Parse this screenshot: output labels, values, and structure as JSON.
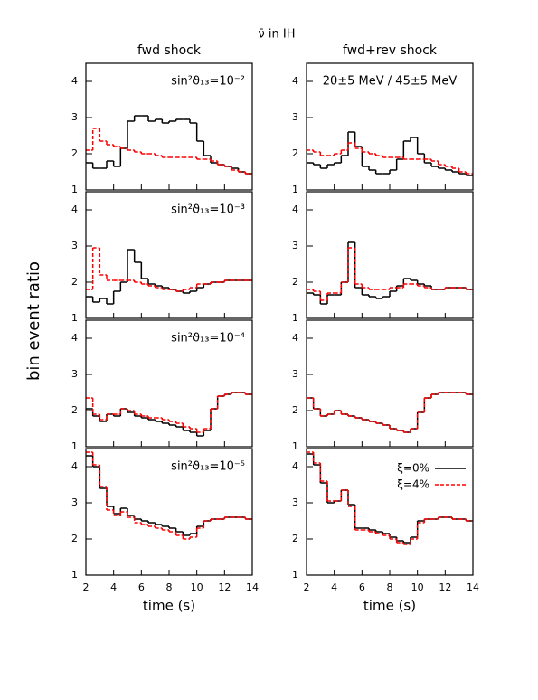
{
  "figure": {
    "title": "ν̄ in IH",
    "columns": [
      "fwd shock",
      "fwd+rev shock"
    ],
    "ylabel": "bin event ratio"
  },
  "chart_data": [
    {
      "type": "histogram",
      "annotation": "sin²ϑ₁₃=10⁻²",
      "bins": [
        2,
        2.5,
        3,
        3.5,
        4,
        4.5,
        5,
        5.5,
        6,
        6.5,
        7,
        7.5,
        8,
        8.5,
        9,
        9.5,
        10,
        10.5,
        11,
        11.5,
        12,
        12.5,
        13,
        13.5,
        14
      ],
      "xlim": [
        2,
        14
      ],
      "xticks": [
        2,
        4,
        6,
        8,
        10,
        12,
        14
      ],
      "ylim": [
        1,
        4.5
      ],
      "yticks": [
        1,
        2,
        3,
        4
      ],
      "series": [
        {
          "color": "#000000",
          "dash": false,
          "values": [
            1.75,
            1.6,
            1.6,
            1.8,
            1.65,
            2.15,
            2.9,
            3.05,
            3.05,
            2.9,
            2.95,
            2.85,
            2.9,
            2.95,
            2.95,
            2.85,
            2.35,
            1.95,
            1.75,
            1.7,
            1.65,
            1.6,
            1.5,
            1.45
          ]
        },
        {
          "color": "#ff0000",
          "dash": true,
          "values": [
            2.1,
            2.7,
            2.35,
            2.25,
            2.2,
            2.15,
            2.1,
            2.05,
            2.0,
            2.0,
            1.95,
            1.9,
            1.9,
            1.9,
            1.9,
            1.9,
            1.85,
            1.85,
            1.8,
            1.7,
            1.65,
            1.55,
            1.5,
            1.45
          ]
        }
      ]
    },
    {
      "type": "histogram",
      "annotation": "20±5 MeV / 45±5 MeV",
      "bins": [
        2,
        2.5,
        3,
        3.5,
        4,
        4.5,
        5,
        5.5,
        6,
        6.5,
        7,
        7.5,
        8,
        8.5,
        9,
        9.5,
        10,
        10.5,
        11,
        11.5,
        12,
        12.5,
        13,
        13.5,
        14
      ],
      "xlim": [
        2,
        14
      ],
      "xticks": [
        2,
        4,
        6,
        8,
        10,
        12,
        14
      ],
      "ylim": [
        1,
        4.5
      ],
      "yticks": [
        1,
        2,
        3,
        4
      ],
      "series": [
        {
          "color": "#000000",
          "dash": false,
          "values": [
            1.75,
            1.7,
            1.6,
            1.7,
            1.75,
            1.95,
            2.6,
            2.2,
            1.65,
            1.55,
            1.45,
            1.45,
            1.55,
            1.85,
            2.35,
            2.45,
            2.0,
            1.75,
            1.65,
            1.6,
            1.55,
            1.5,
            1.45,
            1.4
          ]
        },
        {
          "color": "#ff0000",
          "dash": true,
          "values": [
            2.1,
            2.05,
            1.95,
            1.95,
            2.0,
            2.1,
            2.3,
            2.15,
            2.05,
            2.0,
            1.95,
            1.9,
            1.9,
            1.9,
            1.85,
            1.85,
            1.85,
            1.85,
            1.8,
            1.7,
            1.65,
            1.6,
            1.5,
            1.45
          ]
        }
      ]
    },
    {
      "type": "histogram",
      "annotation": "sin²ϑ₁₃=10⁻³",
      "bins": [
        2,
        2.5,
        3,
        3.5,
        4,
        4.5,
        5,
        5.5,
        6,
        6.5,
        7,
        7.5,
        8,
        8.5,
        9,
        9.5,
        10,
        10.5,
        11,
        11.5,
        12,
        12.5,
        13,
        13.5,
        14
      ],
      "xlim": [
        2,
        14
      ],
      "xticks": [
        2,
        4,
        6,
        8,
        10,
        12,
        14
      ],
      "ylim": [
        1,
        4.5
      ],
      "yticks": [
        1,
        2,
        3,
        4
      ],
      "series": [
        {
          "color": "#000000",
          "dash": false,
          "values": [
            1.6,
            1.45,
            1.55,
            1.4,
            1.75,
            2.0,
            2.9,
            2.55,
            2.1,
            1.95,
            1.9,
            1.85,
            1.8,
            1.75,
            1.7,
            1.75,
            1.85,
            1.95,
            2.0,
            2.0,
            2.05,
            2.05,
            2.05,
            2.05
          ]
        },
        {
          "color": "#ff0000",
          "dash": true,
          "values": [
            1.8,
            2.95,
            2.2,
            2.05,
            2.05,
            2.05,
            2.05,
            2.0,
            1.95,
            1.9,
            1.85,
            1.8,
            1.8,
            1.75,
            1.8,
            1.85,
            1.95,
            1.95,
            2.0,
            2.0,
            2.05,
            2.05,
            2.05,
            2.05
          ]
        }
      ]
    },
    {
      "type": "histogram",
      "bins": [
        2,
        2.5,
        3,
        3.5,
        4,
        4.5,
        5,
        5.5,
        6,
        6.5,
        7,
        7.5,
        8,
        8.5,
        9,
        9.5,
        10,
        10.5,
        11,
        11.5,
        12,
        12.5,
        13,
        13.5,
        14
      ],
      "xlim": [
        2,
        14
      ],
      "xticks": [
        2,
        4,
        6,
        8,
        10,
        12,
        14
      ],
      "ylim": [
        1,
        4.5
      ],
      "yticks": [
        1,
        2,
        3,
        4
      ],
      "series": [
        {
          "color": "#000000",
          "dash": false,
          "values": [
            1.7,
            1.65,
            1.4,
            1.65,
            1.65,
            2.0,
            3.1,
            1.85,
            1.65,
            1.6,
            1.55,
            1.6,
            1.75,
            1.9,
            2.1,
            2.05,
            1.95,
            1.9,
            1.8,
            1.8,
            1.85,
            1.85,
            1.85,
            1.8
          ]
        },
        {
          "color": "#ff0000",
          "dash": true,
          "values": [
            1.8,
            1.75,
            1.5,
            1.7,
            1.7,
            2.0,
            2.95,
            1.95,
            1.85,
            1.8,
            1.8,
            1.8,
            1.85,
            1.85,
            1.95,
            1.95,
            1.9,
            1.85,
            1.8,
            1.8,
            1.85,
            1.85,
            1.85,
            1.8
          ]
        }
      ]
    },
    {
      "type": "histogram",
      "annotation": "sin²ϑ₁₃=10⁻⁴",
      "bins": [
        2,
        2.5,
        3,
        3.5,
        4,
        4.5,
        5,
        5.5,
        6,
        6.5,
        7,
        7.5,
        8,
        8.5,
        9,
        9.5,
        10,
        10.5,
        11,
        11.5,
        12,
        12.5,
        13,
        13.5,
        14
      ],
      "xlim": [
        2,
        14
      ],
      "xticks": [
        2,
        4,
        6,
        8,
        10,
        12,
        14
      ],
      "ylim": [
        1,
        4.5
      ],
      "yticks": [
        1,
        2,
        3,
        4
      ],
      "series": [
        {
          "color": "#000000",
          "dash": false,
          "values": [
            2.05,
            1.85,
            1.7,
            1.9,
            1.85,
            2.05,
            1.95,
            1.85,
            1.8,
            1.75,
            1.7,
            1.65,
            1.6,
            1.55,
            1.45,
            1.4,
            1.3,
            1.45,
            2.05,
            2.4,
            2.45,
            2.5,
            2.5,
            2.45
          ]
        },
        {
          "color": "#ff0000",
          "dash": true,
          "values": [
            2.35,
            1.9,
            1.75,
            1.9,
            1.9,
            2.05,
            2.0,
            1.9,
            1.85,
            1.8,
            1.8,
            1.75,
            1.7,
            1.65,
            1.55,
            1.5,
            1.4,
            1.5,
            2.05,
            2.4,
            2.45,
            2.5,
            2.5,
            2.45
          ]
        }
      ]
    },
    {
      "type": "histogram",
      "bins": [
        2,
        2.5,
        3,
        3.5,
        4,
        4.5,
        5,
        5.5,
        6,
        6.5,
        7,
        7.5,
        8,
        8.5,
        9,
        9.5,
        10,
        10.5,
        11,
        11.5,
        12,
        12.5,
        13,
        13.5,
        14
      ],
      "xlim": [
        2,
        14
      ],
      "xticks": [
        2,
        4,
        6,
        8,
        10,
        12,
        14
      ],
      "ylim": [
        1,
        4.5
      ],
      "yticks": [
        1,
        2,
        3,
        4
      ],
      "series": [
        {
          "color": "#000000",
          "dash": false,
          "values": [
            2.35,
            2.05,
            1.85,
            1.9,
            2.0,
            1.9,
            1.85,
            1.8,
            1.75,
            1.7,
            1.65,
            1.6,
            1.5,
            1.45,
            1.4,
            1.5,
            1.95,
            2.35,
            2.45,
            2.5,
            2.5,
            2.5,
            2.5,
            2.45
          ]
        },
        {
          "color": "#ff0000",
          "dash": true,
          "values": [
            2.35,
            2.05,
            1.85,
            1.9,
            2.0,
            1.9,
            1.85,
            1.8,
            1.75,
            1.7,
            1.65,
            1.6,
            1.5,
            1.45,
            1.4,
            1.5,
            1.95,
            2.35,
            2.45,
            2.5,
            2.5,
            2.5,
            2.5,
            2.45
          ]
        }
      ]
    },
    {
      "type": "histogram",
      "annotation": "sin²ϑ₁₃=10⁻⁵",
      "xlabel": "time (s)",
      "bins": [
        2,
        2.5,
        3,
        3.5,
        4,
        4.5,
        5,
        5.5,
        6,
        6.5,
        7,
        7.5,
        8,
        8.5,
        9,
        9.5,
        10,
        10.5,
        11,
        11.5,
        12,
        12.5,
        13,
        13.5,
        14
      ],
      "xlim": [
        2,
        14
      ],
      "xticks": [
        2,
        4,
        6,
        8,
        10,
        12,
        14
      ],
      "ylim": [
        1,
        4.5
      ],
      "yticks": [
        1,
        2,
        3,
        4
      ],
      "series": [
        {
          "color": "#000000",
          "dash": false,
          "values": [
            4.3,
            4.0,
            3.4,
            2.9,
            2.7,
            2.85,
            2.65,
            2.55,
            2.5,
            2.45,
            2.4,
            2.35,
            2.3,
            2.2,
            2.1,
            2.15,
            2.35,
            2.5,
            2.55,
            2.55,
            2.6,
            2.6,
            2.6,
            2.55
          ]
        },
        {
          "color": "#ff0000",
          "dash": true,
          "values": [
            4.4,
            4.05,
            3.45,
            2.8,
            2.65,
            2.75,
            2.6,
            2.45,
            2.4,
            2.35,
            2.3,
            2.25,
            2.2,
            2.1,
            2.0,
            2.05,
            2.3,
            2.5,
            2.55,
            2.55,
            2.6,
            2.6,
            2.6,
            2.55
          ]
        }
      ]
    },
    {
      "type": "histogram",
      "xlabel": "time (s)",
      "legend": "top-right",
      "bins": [
        2,
        2.5,
        3,
        3.5,
        4,
        4.5,
        5,
        5.5,
        6,
        6.5,
        7,
        7.5,
        8,
        8.5,
        9,
        9.5,
        10,
        10.5,
        11,
        11.5,
        12,
        12.5,
        13,
        13.5,
        14
      ],
      "xlim": [
        2,
        14
      ],
      "xticks": [
        2,
        4,
        6,
        8,
        10,
        12,
        14
      ],
      "ylim": [
        1,
        4.5
      ],
      "yticks": [
        1,
        2,
        3,
        4
      ],
      "series": [
        {
          "name": "ξ=0%",
          "color": "#000000",
          "dash": false,
          "values": [
            4.35,
            4.05,
            3.55,
            3.0,
            3.05,
            3.35,
            2.95,
            2.3,
            2.3,
            2.25,
            2.2,
            2.15,
            2.05,
            1.95,
            1.9,
            2.05,
            2.5,
            2.55,
            2.55,
            2.6,
            2.6,
            2.55,
            2.55,
            2.5
          ]
        },
        {
          "name": "ξ=4%",
          "color": "#ff0000",
          "dash": true,
          "values": [
            4.4,
            4.1,
            3.6,
            3.05,
            3.05,
            3.35,
            2.9,
            2.25,
            2.25,
            2.2,
            2.15,
            2.1,
            2.0,
            1.9,
            1.85,
            2.0,
            2.45,
            2.55,
            2.55,
            2.6,
            2.6,
            2.55,
            2.55,
            2.5
          ]
        }
      ]
    }
  ]
}
